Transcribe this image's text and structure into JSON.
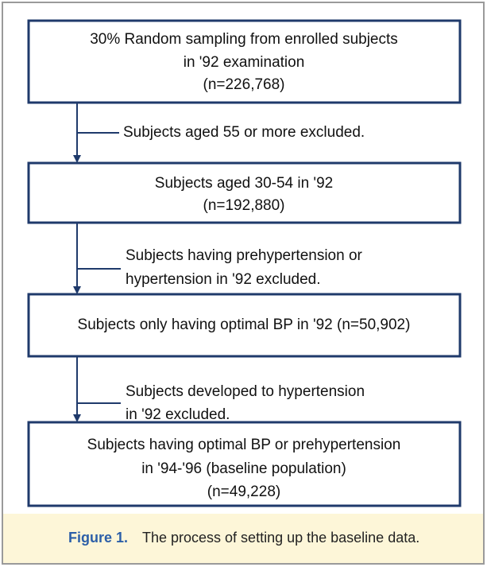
{
  "nodes": [
    {
      "lines": [
        "30% Random sampling from enrolled subjects",
        "in '92 examination",
        "(n=226,768)"
      ]
    },
    {
      "lines": [
        "Subjects aged 30-54 in '92",
        "(n=192,880)"
      ]
    },
    {
      "lines": [
        "Subjects only having optimal BP in '92 (n=50,902)"
      ]
    },
    {
      "lines": [
        "Subjects having optimal BP or prehypertension",
        "in '94-'96 (baseline population)",
        "(n=49,228)"
      ]
    }
  ],
  "exclusions": [
    {
      "lines": [
        "Subjects aged 55 or more excluded."
      ]
    },
    {
      "lines": [
        "Subjects having prehypertension or",
        "hypertension in '92 excluded."
      ]
    },
    {
      "lines": [
        "Subjects developed to hypertension",
        "in '92 excluded."
      ]
    }
  ],
  "caption": {
    "label": "Figure 1.",
    "text": "The process of setting up the baseline data."
  }
}
